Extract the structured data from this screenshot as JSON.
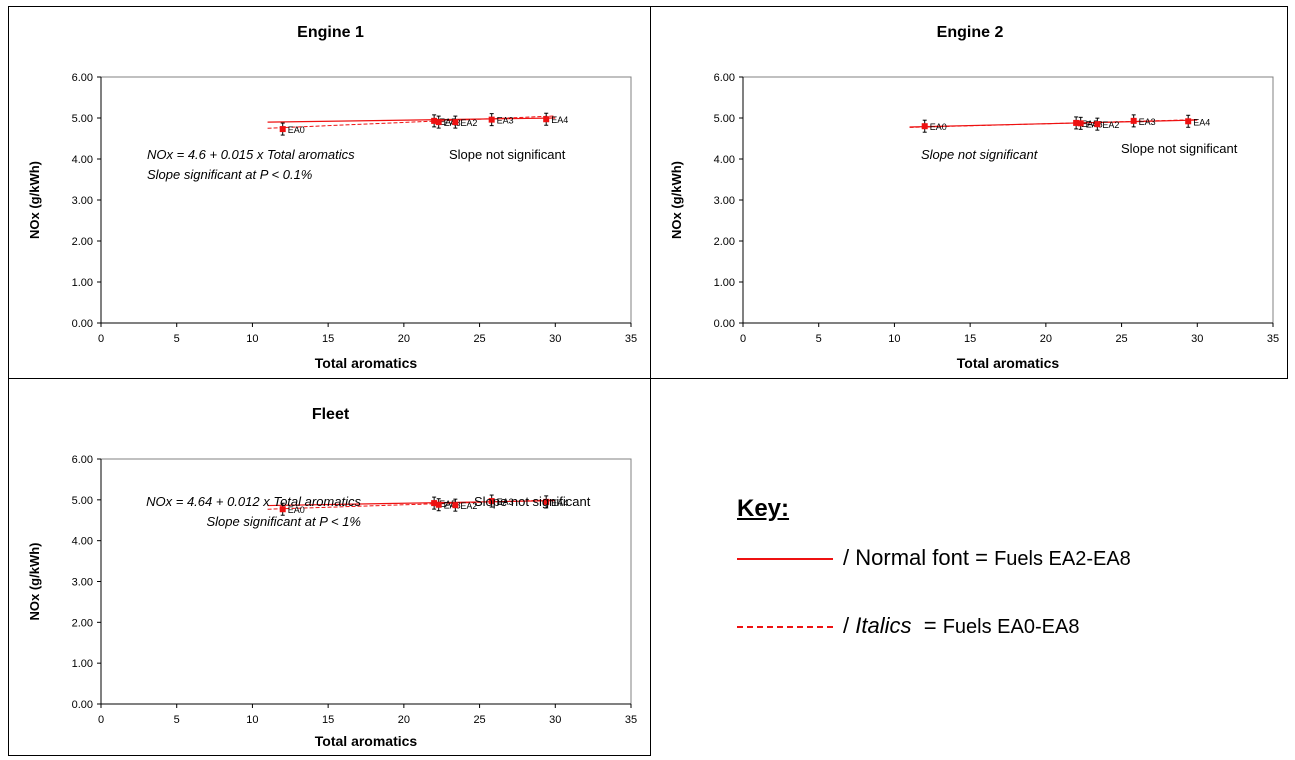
{
  "colors": {
    "series": "#ee1111",
    "axis": "#000000",
    "plot_border": "#808080"
  },
  "chart_data": [
    {
      "type": "scatter",
      "title": "Engine 1",
      "xlabel": "Total aromatics",
      "ylabel": "NOx (g/kWh)",
      "xlim": [
        0,
        35
      ],
      "ylim": [
        0,
        6
      ],
      "x_ticks": [
        "0",
        "5",
        "10",
        "15",
        "20",
        "25",
        "30",
        "35"
      ],
      "y_ticks": [
        "0.00",
        "1.00",
        "2.00",
        "3.00",
        "4.00",
        "5.00",
        "6.00"
      ],
      "points": [
        {
          "label": "EA0",
          "x": 12.0,
          "y": 4.73
        },
        {
          "label": "EA5",
          "x": 22.0,
          "y": 4.93
        },
        {
          "label": "EA8",
          "x": 22.3,
          "y": 4.9
        },
        {
          "label": "EA2",
          "x": 23.4,
          "y": 4.9
        },
        {
          "label": "EA3",
          "x": 25.8,
          "y": 4.96
        },
        {
          "label": "EA4",
          "x": 29.4,
          "y": 4.97
        }
      ],
      "fit_solid": {
        "x": [
          11,
          30
        ],
        "y": [
          4.9,
          5.0
        ]
      },
      "fit_dashed": {
        "x": [
          11,
          30
        ],
        "y": [
          4.75,
          5.05
        ]
      },
      "annotations": [
        {
          "text": "NOx = 4.6 + 0.015 x Total aromatics",
          "style": "italic"
        },
        {
          "text": "Slope significant at P < 0.1%",
          "style": "italic"
        },
        {
          "text": "Slope not significant",
          "style": "normal"
        }
      ]
    },
    {
      "type": "scatter",
      "title": "Engine 2",
      "xlabel": "Total aromatics",
      "ylabel": "NOx (g/kWh)",
      "xlim": [
        0,
        35
      ],
      "ylim": [
        0,
        6
      ],
      "x_ticks": [
        "0",
        "5",
        "10",
        "15",
        "20",
        "25",
        "30",
        "35"
      ],
      "y_ticks": [
        "0.00",
        "1.00",
        "2.00",
        "3.00",
        "4.00",
        "5.00",
        "6.00"
      ],
      "points": [
        {
          "label": "EA0",
          "x": 12.0,
          "y": 4.8
        },
        {
          "label": "EA5",
          "x": 22.0,
          "y": 4.88
        },
        {
          "label": "EA8",
          "x": 22.3,
          "y": 4.87
        },
        {
          "label": "EA2",
          "x": 23.4,
          "y": 4.85
        },
        {
          "label": "EA3",
          "x": 25.8,
          "y": 4.93
        },
        {
          "label": "EA4",
          "x": 29.4,
          "y": 4.92
        }
      ],
      "fit_solid": {
        "x": [
          11,
          30
        ],
        "y": [
          4.78,
          4.95
        ]
      },
      "fit_dashed": {
        "x": [
          11,
          30
        ],
        "y": [
          4.77,
          4.96
        ]
      },
      "annotations": [
        {
          "text": "Slope not significant",
          "style": "italic"
        },
        {
          "text": "Slope not significant",
          "style": "normal"
        }
      ]
    },
    {
      "type": "scatter",
      "title": "Fleet",
      "xlabel": "Total aromatics",
      "ylabel": "NOx (g/kWh)",
      "xlim": [
        0,
        35
      ],
      "ylim": [
        0,
        6
      ],
      "x_ticks": [
        "0",
        "5",
        "10",
        "15",
        "20",
        "25",
        "30",
        "35"
      ],
      "y_ticks": [
        "0.00",
        "1.00",
        "2.00",
        "3.00",
        "4.00",
        "5.00",
        "6.00"
      ],
      "points": [
        {
          "label": "EA0",
          "x": 12.0,
          "y": 4.77
        },
        {
          "label": "EA5",
          "x": 22.0,
          "y": 4.92
        },
        {
          "label": "EA8",
          "x": 22.3,
          "y": 4.88
        },
        {
          "label": "EA2",
          "x": 23.4,
          "y": 4.87
        },
        {
          "label": "EA3",
          "x": 25.8,
          "y": 4.97
        },
        {
          "label": "EA4",
          "x": 29.4,
          "y": 4.95
        }
      ],
      "fit_solid": {
        "x": [
          11,
          30
        ],
        "y": [
          4.86,
          4.98
        ]
      },
      "fit_dashed": {
        "x": [
          11,
          30
        ],
        "y": [
          4.77,
          5.0
        ]
      },
      "annotations": [
        {
          "text": "NOx = 4.64 + 0.012 x Total aromatics",
          "style": "italic"
        },
        {
          "text": "Slope significant at P < 1%",
          "style": "italic"
        },
        {
          "text": "Slope not significant",
          "style": "normal"
        }
      ]
    }
  ],
  "key": {
    "title": "Key:",
    "row1_sep": "/",
    "row1_style": "Normal font",
    "row1_eq": "=",
    "row1_fuels": "Fuels EA2-EA8",
    "row2_sep": "/",
    "row2_style": "Italics",
    "row2_eq": "=",
    "row2_fuels": "Fuels EA0-EA8"
  }
}
